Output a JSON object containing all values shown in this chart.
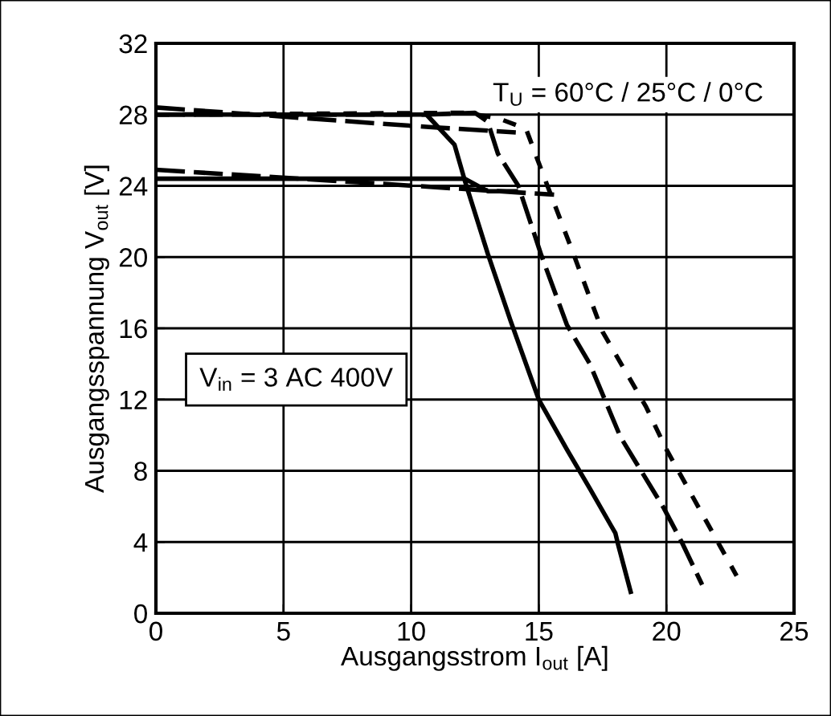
{
  "chart_data": {
    "type": "line",
    "xlabel": "Ausgangsstrom I$_{out}$ [A]",
    "ylabel": "Ausgangsspannung V$_{out}$ [V]",
    "annotations": [
      "T$_{U}$ = 60°C / 25°C / 0°C",
      "V$_{in}$ = 3 AC 400V"
    ],
    "xlim": [
      0,
      25
    ],
    "xticks": [
      0,
      5,
      10,
      15,
      20,
      25
    ],
    "ylim": [
      0,
      32
    ],
    "yticks": [
      0,
      4,
      8,
      12,
      16,
      20,
      24,
      28,
      32
    ],
    "grid": true,
    "marker": "none",
    "series": [
      {
        "color": "#000000",
        "line_style": "solid",
        "x": [
          0,
          10.6,
          11.7,
          12.1,
          13.0,
          13.9,
          15.0,
          16.1,
          17.0,
          18.0,
          18.1,
          18.6
        ],
        "values": [
          28,
          28,
          26.3,
          24.3,
          20.2,
          16.4,
          12.0,
          9.2,
          7.0,
          4.5,
          3.9,
          1.2
        ]
      },
      {
        "color": "#000000",
        "line_style": "solid",
        "x": [
          0,
          12.1,
          13.0,
          14.1
        ],
        "values": [
          24.4,
          24.4,
          23.7,
          23.7
        ]
      },
      {
        "color": "#000000",
        "line_style": "dashed",
        "x": [
          0,
          5.8,
          10.7,
          14.1
        ],
        "values": [
          28.4,
          27.8,
          27.3,
          27.0
        ]
      },
      {
        "color": "#000000",
        "line_style": "dashed",
        "x": [
          0,
          10.6,
          12.5,
          13.0,
          13.4,
          14.2,
          15.1,
          16.1,
          17.0,
          18.2,
          19.9,
          20.6,
          21.4
        ],
        "values": [
          28,
          28,
          28.1,
          27.6,
          25.8,
          24.0,
          20.1,
          16.2,
          14.0,
          9.9,
          5.9,
          4.0,
          1.6
        ]
      },
      {
        "color": "#000000",
        "line_style": "dashed",
        "x": [
          0,
          7.9,
          15.6
        ],
        "values": [
          24.9,
          24.2,
          23.5
        ]
      },
      {
        "color": "#000000",
        "line_style": "dotted",
        "x": [
          0,
          12.1,
          13.4,
          14.5,
          15.1,
          16.3,
          17.5,
          19.2,
          20.0,
          22.75
        ],
        "values": [
          28,
          28.1,
          27.8,
          27.2,
          24.9,
          20.4,
          15.8,
          11.6,
          9.2,
          2.1
        ]
      }
    ]
  }
}
